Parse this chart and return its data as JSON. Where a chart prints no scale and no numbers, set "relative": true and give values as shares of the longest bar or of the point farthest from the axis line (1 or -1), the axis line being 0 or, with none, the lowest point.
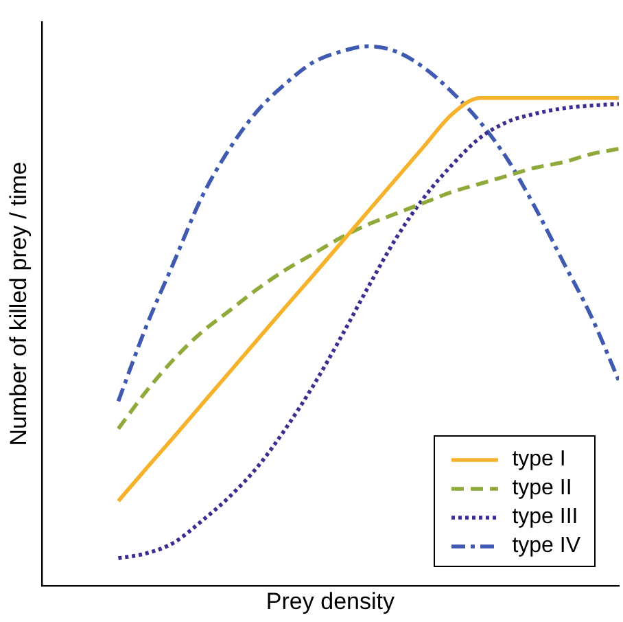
{
  "chart_data": {
    "type": "line",
    "relative": true,
    "xlabel": "Prey density",
    "ylabel": "Number of killed prey / time",
    "legend": "bottom right",
    "grid": false,
    "marker": "none",
    "categories": [
      null,
      null,
      null,
      null,
      null,
      null,
      null,
      null,
      null,
      null,
      null,
      null,
      null,
      null,
      null,
      null,
      null,
      null,
      null
    ],
    "series": [
      {
        "name": "type I",
        "color": "#f5b22a",
        "line_style": "solid",
        "values": [
          0.157,
          0.217,
          0.276,
          0.336,
          0.396,
          0.456,
          0.516,
          0.575,
          0.635,
          0.695,
          0.755,
          0.815,
          0.874,
          0.904,
          0.904,
          0.904,
          0.904,
          0.904,
          0.904
        ]
      },
      {
        "name": "type II",
        "color": "#8faa3a",
        "line_style": "dashed",
        "values": [
          0.291,
          0.36,
          0.42,
          0.47,
          0.51,
          0.55,
          0.585,
          0.615,
          0.645,
          0.67,
          0.69,
          0.71,
          0.73,
          0.745,
          0.76,
          0.775,
          0.785,
          0.8,
          0.81
        ]
      },
      {
        "name": "type III",
        "color": "#3a2f8f",
        "line_style": "dotted",
        "values": [
          0.051,
          0.06,
          0.08,
          0.12,
          0.165,
          0.22,
          0.29,
          0.37,
          0.46,
          0.555,
          0.645,
          0.72,
          0.78,
          0.83,
          0.86,
          0.875,
          0.885,
          0.89,
          0.893
        ]
      },
      {
        "name": "type IV",
        "color": "#3f5ab0",
        "line_style": "dashed",
        "values": [
          0.342,
          0.48,
          0.6,
          0.72,
          0.81,
          0.88,
          0.93,
          0.97,
          0.99,
          1,
          0.99,
          0.96,
          0.915,
          0.86,
          0.79,
          0.7,
          0.6,
          0.5,
          0.38
        ]
      }
    ]
  }
}
